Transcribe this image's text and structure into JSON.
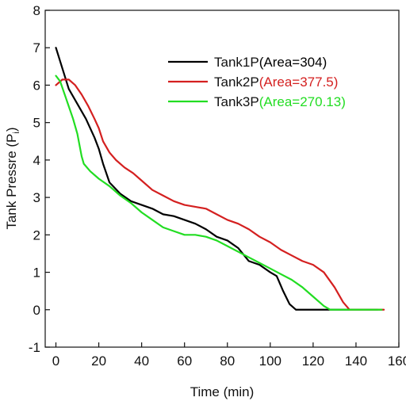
{
  "chart_data": {
    "type": "line",
    "xlabel": "Time (min)",
    "ylabel_main": "Tank Pressre (P",
    "ylabel_sub": "i",
    "ylabel_end": ")",
    "xlim": [
      -5,
      160
    ],
    "ylim": [
      -1,
      8
    ],
    "xticks": [
      0,
      20,
      40,
      60,
      80,
      100,
      120,
      140,
      160
    ],
    "yticks": [
      -1,
      0,
      1,
      2,
      3,
      4,
      5,
      6,
      7,
      8
    ],
    "grid": false,
    "legend_position": "top-right",
    "series": [
      {
        "name": "Tank1P",
        "area_text": "(Area=304)",
        "color": "#000000",
        "area_color": "#000000",
        "points": [
          [
            0,
            7.0
          ],
          [
            3,
            6.45
          ],
          [
            6,
            5.9
          ],
          [
            10,
            5.5
          ],
          [
            14,
            5.1
          ],
          [
            18,
            4.6
          ],
          [
            20,
            4.3
          ],
          [
            22,
            3.9
          ],
          [
            25,
            3.4
          ],
          [
            30,
            3.1
          ],
          [
            35,
            2.9
          ],
          [
            40,
            2.8
          ],
          [
            45,
            2.7
          ],
          [
            50,
            2.55
          ],
          [
            55,
            2.5
          ],
          [
            60,
            2.4
          ],
          [
            65,
            2.3
          ],
          [
            70,
            2.15
          ],
          [
            75,
            1.95
          ],
          [
            80,
            1.85
          ],
          [
            85,
            1.65
          ],
          [
            90,
            1.3
          ],
          [
            95,
            1.2
          ],
          [
            100,
            1.0
          ],
          [
            103,
            0.9
          ],
          [
            106,
            0.5
          ],
          [
            109,
            0.15
          ],
          [
            112,
            0.0
          ],
          [
            120,
            0.0
          ],
          [
            130,
            0.0
          ],
          [
            140,
            0.0
          ],
          [
            150,
            0.0
          ]
        ]
      },
      {
        "name": "Tank2P",
        "area_text": "(Area=377.5)",
        "color": "#d42020",
        "area_color": "#d42020",
        "points": [
          [
            0,
            6.0
          ],
          [
            3,
            6.15
          ],
          [
            6,
            6.15
          ],
          [
            9,
            6.0
          ],
          [
            12,
            5.75
          ],
          [
            15,
            5.45
          ],
          [
            18,
            5.1
          ],
          [
            20,
            4.85
          ],
          [
            22,
            4.5
          ],
          [
            25,
            4.2
          ],
          [
            28,
            4.0
          ],
          [
            32,
            3.8
          ],
          [
            36,
            3.65
          ],
          [
            40,
            3.45
          ],
          [
            45,
            3.2
          ],
          [
            50,
            3.05
          ],
          [
            55,
            2.9
          ],
          [
            60,
            2.8
          ],
          [
            65,
            2.75
          ],
          [
            70,
            2.7
          ],
          [
            75,
            2.55
          ],
          [
            80,
            2.4
          ],
          [
            85,
            2.3
          ],
          [
            90,
            2.15
          ],
          [
            95,
            1.95
          ],
          [
            100,
            1.8
          ],
          [
            105,
            1.6
          ],
          [
            110,
            1.45
          ],
          [
            115,
            1.3
          ],
          [
            120,
            1.2
          ],
          [
            125,
            1.0
          ],
          [
            130,
            0.6
          ],
          [
            134,
            0.2
          ],
          [
            137,
            0.0
          ],
          [
            145,
            0.0
          ],
          [
            153,
            0.0
          ]
        ]
      },
      {
        "name": "Tank3P",
        "area_text": "(Area=270.13)",
        "color": "#22dd22",
        "area_color": "#22dd22",
        "points": [
          [
            0,
            6.25
          ],
          [
            2,
            6.1
          ],
          [
            5,
            5.6
          ],
          [
            8,
            5.1
          ],
          [
            10,
            4.7
          ],
          [
            12,
            4.1
          ],
          [
            13,
            3.9
          ],
          [
            16,
            3.7
          ],
          [
            20,
            3.5
          ],
          [
            25,
            3.3
          ],
          [
            30,
            3.05
          ],
          [
            35,
            2.85
          ],
          [
            40,
            2.6
          ],
          [
            45,
            2.4
          ],
          [
            50,
            2.2
          ],
          [
            55,
            2.1
          ],
          [
            60,
            2.0
          ],
          [
            65,
            2.0
          ],
          [
            70,
            1.95
          ],
          [
            75,
            1.85
          ],
          [
            80,
            1.7
          ],
          [
            85,
            1.55
          ],
          [
            90,
            1.4
          ],
          [
            95,
            1.25
          ],
          [
            100,
            1.1
          ],
          [
            105,
            0.95
          ],
          [
            110,
            0.8
          ],
          [
            115,
            0.6
          ],
          [
            120,
            0.35
          ],
          [
            125,
            0.1
          ],
          [
            128,
            0.0
          ],
          [
            135,
            0.0
          ],
          [
            145,
            0.0
          ],
          [
            152,
            0.0
          ]
        ]
      }
    ]
  }
}
